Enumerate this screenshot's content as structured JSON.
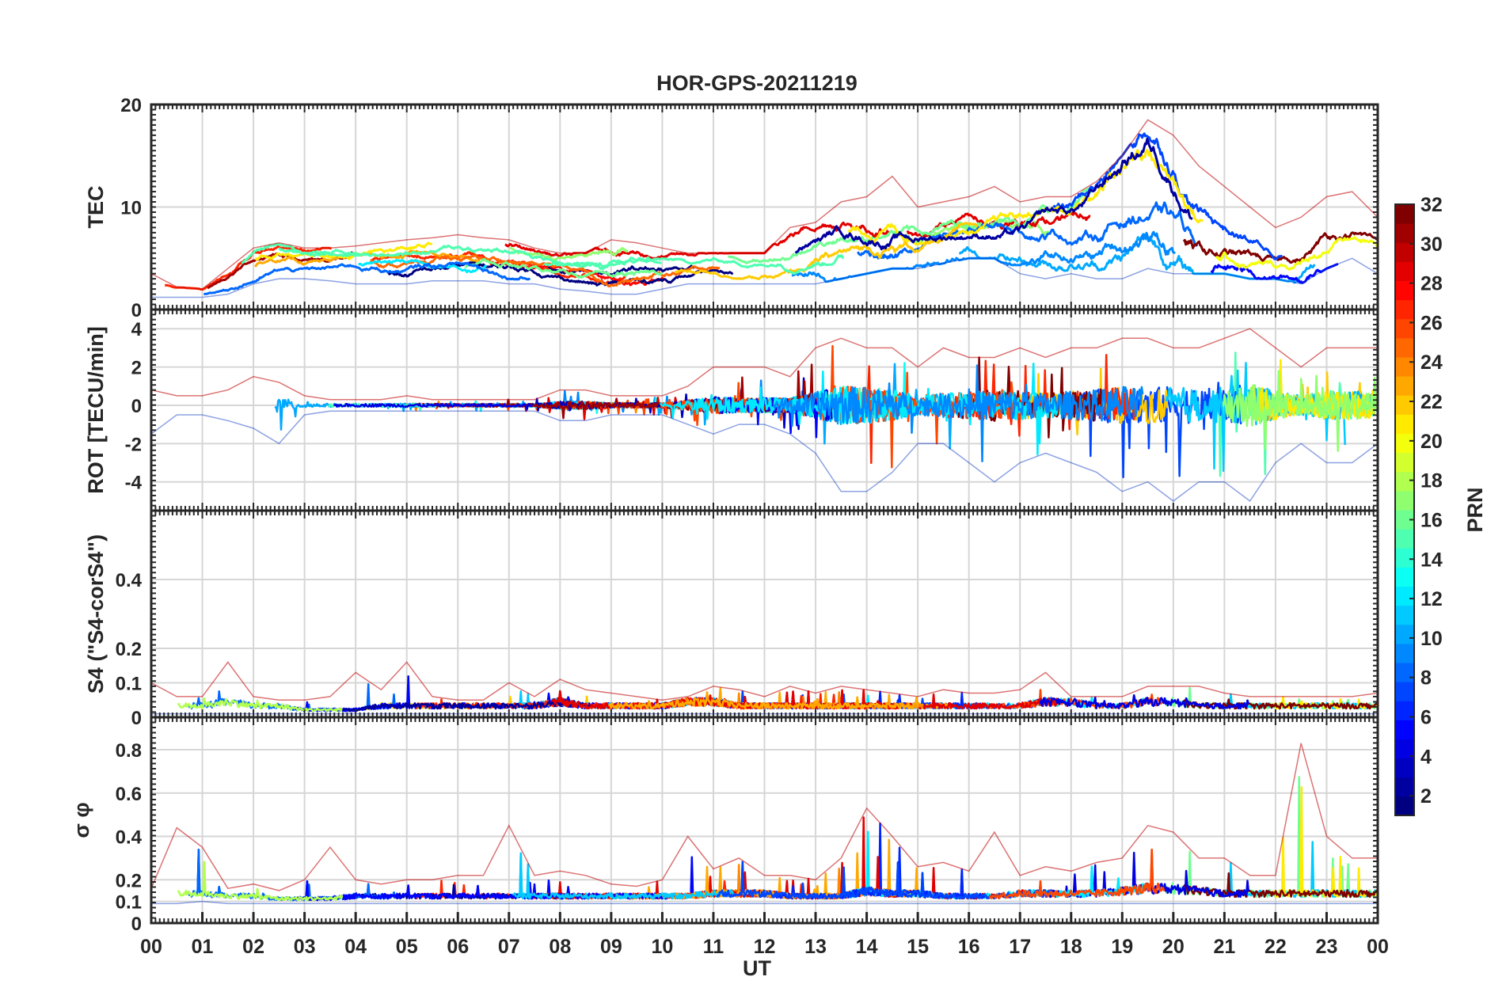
{
  "chart_data": {
    "type": "line",
    "title": "HOR-GPS-20211219",
    "xlabel": "UT",
    "x_tick_labels": [
      "00",
      "01",
      "02",
      "03",
      "04",
      "05",
      "06",
      "07",
      "08",
      "09",
      "10",
      "11",
      "12",
      "13",
      "14",
      "15",
      "16",
      "17",
      "18",
      "19",
      "20",
      "21",
      "22",
      "23",
      "00"
    ],
    "x_range_hours": [
      0,
      24
    ],
    "grid": true,
    "colormap": "jet",
    "colorbar": {
      "label": "PRN",
      "range": [
        1,
        32
      ],
      "tick_labels": [
        "2",
        "4",
        "6",
        "8",
        "10",
        "12",
        "14",
        "16",
        "18",
        "20",
        "22",
        "24",
        "26",
        "28",
        "30",
        "32"
      ]
    },
    "panels": [
      {
        "name": "tec",
        "ylabel": "TEC",
        "ylim": [
          0,
          20
        ],
        "y_tick_labels": [
          "0",
          "10",
          "20"
        ],
        "y_ticks": [
          0,
          10,
          20
        ],
        "envelope": {
          "x": [
            0,
            0.5,
            1,
            1.5,
            2,
            2.5,
            3,
            3.5,
            4,
            4.5,
            5,
            5.5,
            6,
            6.5,
            7,
            7.5,
            8,
            8.5,
            9,
            9.5,
            10,
            10.5,
            11,
            11.5,
            12,
            12.5,
            13,
            13.5,
            14,
            14.5,
            15,
            15.5,
            16,
            16.5,
            17,
            17.5,
            18,
            18.5,
            19,
            19.5,
            20,
            20.5,
            21,
            21.5,
            22,
            22.5,
            23,
            23.5,
            24
          ],
          "median": [
            2,
            1.8,
            1.6,
            2.5,
            4,
            4.8,
            4.5,
            4.5,
            4.8,
            4.8,
            4.8,
            5,
            5.2,
            5,
            4.8,
            4.5,
            4,
            3.8,
            3.5,
            3.6,
            3.8,
            4,
            4.2,
            4,
            4,
            4.5,
            5.5,
            6,
            6,
            6.5,
            6.5,
            7,
            7.5,
            7.5,
            7.5,
            8,
            8,
            9,
            11,
            13,
            11,
            8,
            7,
            6,
            5,
            5.5,
            7.5,
            8,
            7
          ],
          "max": [
            3.5,
            2.2,
            2,
            4,
            6,
            6.5,
            6,
            6,
            6.2,
            6.5,
            6.8,
            7,
            7.3,
            7,
            6.8,
            6,
            5.5,
            5.5,
            6.8,
            6.5,
            6,
            5.5,
            5.5,
            5.5,
            5.5,
            8,
            8.5,
            10.5,
            11,
            13,
            10,
            10.5,
            11,
            12,
            10.5,
            11,
            11,
            12.5,
            15,
            18.5,
            17,
            14,
            12,
            10,
            8,
            9,
            11,
            11.5,
            9
          ],
          "min": [
            1.2,
            1.2,
            1.2,
            1.5,
            2.5,
            3,
            3,
            2.8,
            2.5,
            2.5,
            2.5,
            2.8,
            2.8,
            2.8,
            2.5,
            2.5,
            2,
            1.8,
            1.5,
            1.5,
            2,
            2.5,
            2.5,
            2.5,
            2.5,
            2.5,
            2.5,
            3,
            3.5,
            4,
            4,
            4.5,
            5,
            5,
            3.5,
            3,
            3.5,
            3,
            3,
            4,
            3.5,
            3.5,
            3.5,
            3,
            3,
            2.5,
            4,
            5,
            3.5
          ]
        }
      },
      {
        "name": "rot",
        "ylabel": "ROT [TECU/min]",
        "ylim": [
          -5.5,
          5
        ],
        "y_tick_labels": [
          "-4",
          "-2",
          "0",
          "2",
          "4"
        ],
        "y_ticks": [
          -4,
          -2,
          0,
          2,
          4
        ],
        "envelope": {
          "x": [
            0,
            0.5,
            1,
            1.5,
            2,
            2.5,
            3,
            3.5,
            4,
            4.5,
            5,
            5.5,
            6,
            6.5,
            7,
            7.5,
            8,
            8.5,
            9,
            9.5,
            10,
            10.5,
            11,
            11.5,
            12,
            12.5,
            13,
            13.5,
            14,
            14.5,
            15,
            15.5,
            16,
            16.5,
            17,
            17.5,
            18,
            18.5,
            19,
            19.5,
            20,
            20.5,
            21,
            21.5,
            22,
            22.5,
            23,
            23.5,
            24
          ],
          "median": [
            0,
            0,
            0,
            0,
            0,
            0,
            0,
            0,
            0,
            0,
            0,
            0,
            0,
            0,
            0,
            0,
            0,
            0,
            0,
            0,
            0,
            0,
            0,
            0,
            0,
            0,
            0,
            0,
            0,
            0,
            0,
            0,
            0,
            0,
            0,
            0,
            0,
            0,
            0,
            0,
            0,
            0,
            0,
            0,
            0,
            0,
            0,
            0,
            0
          ],
          "max": [
            0.8,
            0.5,
            0.5,
            0.8,
            1.5,
            1.2,
            0.5,
            0.3,
            0.3,
            0.3,
            0.5,
            0.3,
            0.3,
            0.3,
            0.3,
            0.3,
            0.8,
            0.8,
            0.5,
            0.5,
            0.5,
            1,
            2,
            2,
            2,
            1.5,
            3,
            3.5,
            3,
            3,
            2,
            3,
            2.5,
            2.5,
            3,
            2.5,
            3,
            3,
            3.5,
            3.5,
            3,
            3,
            3.5,
            4,
            3,
            2,
            3,
            3,
            3
          ],
          "min": [
            -1.5,
            -0.5,
            -0.5,
            -0.8,
            -1.2,
            -2,
            -0.5,
            -0.3,
            -0.3,
            -0.3,
            -0.3,
            -0.3,
            -0.3,
            -0.3,
            -0.3,
            -0.3,
            -0.8,
            -0.8,
            -0.5,
            -0.5,
            -0.5,
            -1,
            -1.5,
            -1,
            -1,
            -1.5,
            -2.5,
            -4.5,
            -4.5,
            -3.5,
            -2,
            -2,
            -3,
            -4,
            -3,
            -2.5,
            -3,
            -3.5,
            -4.5,
            -4,
            -5,
            -4,
            -4,
            -5,
            -3,
            -2,
            -3,
            -3,
            -2
          ]
        }
      },
      {
        "name": "s4",
        "ylabel": "S4 (\"S4-corS4\")",
        "ylim": [
          0,
          0.6
        ],
        "y_tick_labels": [
          "0",
          "0.1",
          "0.2",
          "0.4"
        ],
        "y_ticks": [
          0,
          0.1,
          0.2,
          0.4
        ],
        "envelope": {
          "x": [
            0,
            0.5,
            1,
            1.5,
            2,
            2.5,
            3,
            3.5,
            4,
            4.5,
            5,
            5.5,
            6,
            6.5,
            7,
            7.5,
            8,
            8.5,
            9,
            9.5,
            10,
            10.5,
            11,
            11.5,
            12,
            12.5,
            13,
            13.5,
            14,
            14.5,
            15,
            15.5,
            16,
            16.5,
            17,
            17.5,
            18,
            18.5,
            19,
            19.5,
            20,
            20.5,
            21,
            21.5,
            22,
            22.5,
            23,
            23.5,
            24
          ],
          "median": [
            0.03,
            0.03,
            0.03,
            0.04,
            0.03,
            0.03,
            0.02,
            0.02,
            0.02,
            0.03,
            0.03,
            0.03,
            0.03,
            0.03,
            0.03,
            0.03,
            0.04,
            0.03,
            0.03,
            0.03,
            0.03,
            0.04,
            0.04,
            0.03,
            0.03,
            0.03,
            0.03,
            0.03,
            0.03,
            0.03,
            0.03,
            0.03,
            0.03,
            0.03,
            0.03,
            0.04,
            0.04,
            0.03,
            0.03,
            0.04,
            0.04,
            0.03,
            0.03,
            0.03,
            0.03,
            0.03,
            0.03,
            0.03,
            0.03
          ],
          "max": [
            0.1,
            0.06,
            0.06,
            0.16,
            0.06,
            0.05,
            0.05,
            0.06,
            0.13,
            0.08,
            0.16,
            0.06,
            0.05,
            0.05,
            0.1,
            0.06,
            0.11,
            0.08,
            0.07,
            0.06,
            0.05,
            0.06,
            0.09,
            0.08,
            0.06,
            0.09,
            0.07,
            0.09,
            0.08,
            0.07,
            0.06,
            0.08,
            0.07,
            0.07,
            0.08,
            0.13,
            0.06,
            0.06,
            0.06,
            0.09,
            0.09,
            0.09,
            0.07,
            0.06,
            0.06,
            0.06,
            0.06,
            0.06,
            0.07
          ],
          "min": [
            0.01,
            0.01,
            0.01,
            0.01,
            0.01,
            0.01,
            0.01,
            0.01,
            0.01,
            0.01,
            0.01,
            0.01,
            0.01,
            0.01,
            0.01,
            0.01,
            0.01,
            0.01,
            0.01,
            0.01,
            0.01,
            0.01,
            0.01,
            0.01,
            0.01,
            0.01,
            0.01,
            0.01,
            0.01,
            0.01,
            0.01,
            0.01,
            0.01,
            0.01,
            0.01,
            0.01,
            0.01,
            0.01,
            0.01,
            0.01,
            0.01,
            0.01,
            0.01,
            0.01,
            0.01,
            0.01,
            0.01,
            0.01,
            0.01
          ]
        }
      },
      {
        "name": "sigma_phi",
        "ylabel": "σ φ",
        "ylim": [
          0,
          0.95
        ],
        "y_tick_labels": [
          "0",
          "0.1",
          "0.2",
          "0.4",
          "0.6",
          "0.8"
        ],
        "y_ticks": [
          0,
          0.1,
          0.2,
          0.4,
          0.6,
          0.8
        ],
        "envelope": {
          "x": [
            0,
            0.5,
            1,
            1.5,
            2,
            2.5,
            3,
            3.5,
            4,
            4.5,
            5,
            5.5,
            6,
            6.5,
            7,
            7.5,
            8,
            8.5,
            9,
            9.5,
            10,
            10.5,
            11,
            11.5,
            12,
            12.5,
            13,
            13.5,
            14,
            14.5,
            15,
            15.5,
            16,
            16.5,
            17,
            17.5,
            18,
            18.5,
            19,
            19.5,
            20,
            20.5,
            21,
            21.5,
            22,
            22.5,
            23,
            23.5,
            24
          ],
          "median": [
            0.12,
            0.13,
            0.13,
            0.12,
            0.12,
            0.11,
            0.11,
            0.11,
            0.12,
            0.12,
            0.12,
            0.12,
            0.12,
            0.12,
            0.12,
            0.12,
            0.12,
            0.12,
            0.12,
            0.12,
            0.12,
            0.12,
            0.13,
            0.13,
            0.13,
            0.12,
            0.12,
            0.12,
            0.14,
            0.13,
            0.13,
            0.12,
            0.12,
            0.12,
            0.13,
            0.13,
            0.13,
            0.13,
            0.14,
            0.15,
            0.15,
            0.14,
            0.13,
            0.13,
            0.13,
            0.13,
            0.13,
            0.13,
            0.13
          ],
          "max": [
            0.16,
            0.44,
            0.35,
            0.16,
            0.18,
            0.15,
            0.2,
            0.35,
            0.2,
            0.18,
            0.2,
            0.2,
            0.22,
            0.22,
            0.45,
            0.22,
            0.24,
            0.22,
            0.18,
            0.17,
            0.2,
            0.4,
            0.25,
            0.3,
            0.22,
            0.22,
            0.2,
            0.3,
            0.53,
            0.4,
            0.26,
            0.28,
            0.24,
            0.42,
            0.22,
            0.26,
            0.24,
            0.28,
            0.3,
            0.45,
            0.42,
            0.3,
            0.3,
            0.22,
            0.22,
            0.83,
            0.4,
            0.3,
            0.3
          ],
          "min": [
            0.09,
            0.09,
            0.1,
            0.09,
            0.09,
            0.09,
            0.09,
            0.09,
            0.09,
            0.09,
            0.09,
            0.09,
            0.09,
            0.09,
            0.09,
            0.09,
            0.09,
            0.09,
            0.09,
            0.09,
            0.09,
            0.09,
            0.09,
            0.09,
            0.09,
            0.09,
            0.09,
            0.09,
            0.09,
            0.09,
            0.09,
            0.09,
            0.09,
            0.09,
            0.09,
            0.09,
            0.09,
            0.09,
            0.09,
            0.09,
            0.09,
            0.09,
            0.09,
            0.09,
            0.09,
            0.09,
            0.09,
            0.09,
            0.09
          ]
        }
      }
    ]
  }
}
